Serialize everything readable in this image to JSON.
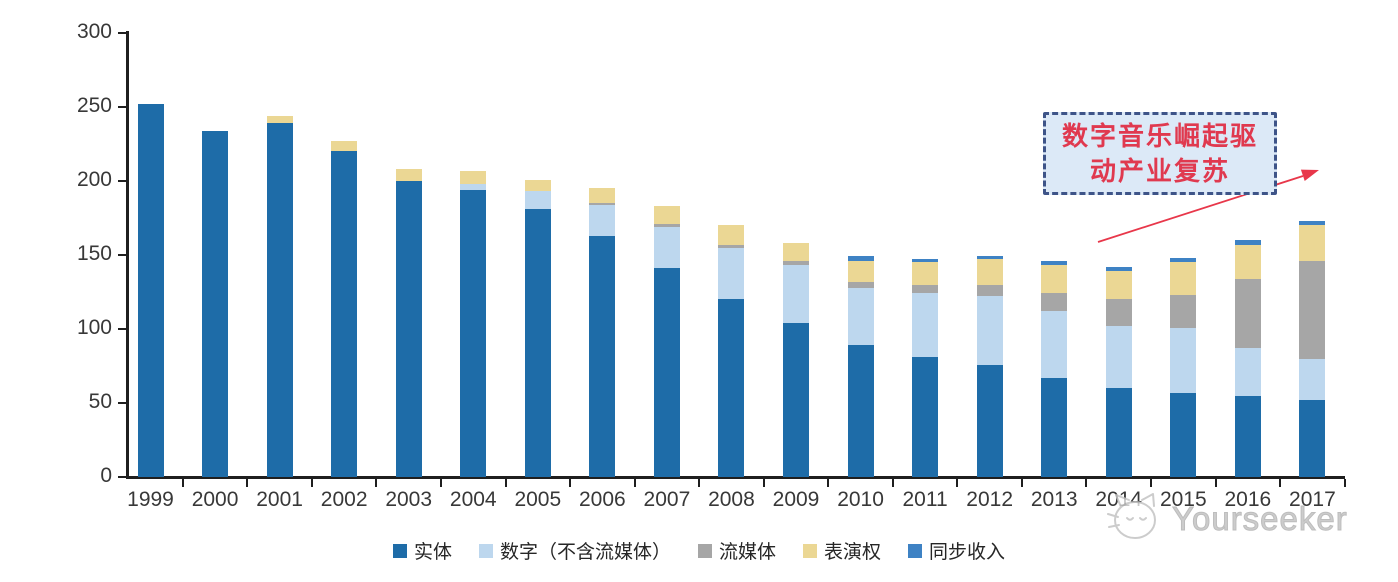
{
  "chart_data": {
    "type": "bar",
    "stacked": true,
    "title": "",
    "xlabel": "",
    "ylabel": "",
    "grid": false,
    "legend_position": "bottom",
    "ylim": [
      0,
      300
    ],
    "yticks": [
      0,
      50,
      100,
      150,
      200,
      250,
      300
    ],
    "categories": [
      "1999",
      "2000",
      "2001",
      "2002",
      "2003",
      "2004",
      "2005",
      "2006",
      "2007",
      "2008",
      "2009",
      "2010",
      "2011",
      "2012",
      "2013",
      "2014",
      "2015",
      "2016",
      "2017"
    ],
    "series": [
      {
        "name": "实体",
        "color": "#1E6CA8",
        "values": [
          252,
          234,
          239,
          220,
          200,
          194,
          181,
          163,
          141,
          120,
          104,
          89,
          81,
          76,
          67,
          60,
          57,
          55,
          52
        ]
      },
      {
        "name": "数字（不含流媒体）",
        "color": "#BDD7EE",
        "values": [
          0,
          0,
          0,
          0,
          0,
          4,
          12,
          21,
          28,
          35,
          39,
          39,
          43,
          46,
          45,
          42,
          44,
          32,
          28
        ]
      },
      {
        "name": "流媒体",
        "color": "#A6A6A6",
        "values": [
          0,
          0,
          0,
          0,
          0,
          0,
          0,
          1,
          2,
          2,
          3,
          4,
          6,
          8,
          12,
          18,
          22,
          47,
          66
        ]
      },
      {
        "name": "表演权",
        "color": "#EBD794",
        "values": [
          0,
          0,
          5,
          7,
          8,
          9,
          8,
          10,
          12,
          13,
          12,
          14,
          15,
          17,
          19,
          19,
          22,
          23,
          24
        ]
      },
      {
        "name": "同步收入",
        "color": "#3E82C4",
        "values": [
          0,
          0,
          0,
          0,
          0,
          0,
          0,
          0,
          0,
          0,
          0,
          3,
          2,
          2,
          3,
          3,
          3,
          3,
          3
        ]
      }
    ]
  },
  "annotation": {
    "line1": "数字音乐崛起驱",
    "line2": "动产业复苏",
    "text_color": "#E0394F",
    "box_fill": "#DCE9F7",
    "box_border": "#3E5488",
    "arrow_color": "#E8374A"
  },
  "watermark": {
    "text": "Yourseeker"
  }
}
